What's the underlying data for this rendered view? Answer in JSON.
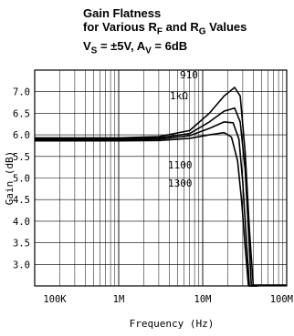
{
  "chart_data": {
    "type": "line",
    "title_lines": [
      "Gain Flatness",
      "for Various R",
      "F",
      " and R",
      "G",
      " Values"
    ],
    "title": {
      "line1": "Gain Flatness",
      "line2_a": "for Various R",
      "line2_sub1": "F",
      "line2_b": " and R",
      "line2_sub2": "G",
      "line2_c": " Values",
      "line3_a": "V",
      "line3_sub1": "S",
      "line3_b": " = ±5V, A",
      "line3_sub2": "V",
      "line3_c": " = 6dB"
    },
    "xlabel": "Frequency (Hz)",
    "ylabel": "Gain (dB)",
    "x_scale": "log",
    "xlim": [
      100000,
      100000000
    ],
    "ylim": [
      2.5,
      7.5
    ],
    "x_ticks": [
      {
        "value": 100000,
        "label": "100K"
      },
      {
        "value": 1000000,
        "label": "1M"
      },
      {
        "value": 10000000,
        "label": "10M"
      },
      {
        "value": 100000000,
        "label": "100M"
      }
    ],
    "y_ticks": [
      {
        "value": 7.0,
        "label": "7.0"
      },
      {
        "value": 6.5,
        "label": "6.5"
      },
      {
        "value": 6.0,
        "label": "6.0"
      },
      {
        "value": 5.5,
        "label": "5.5"
      },
      {
        "value": 5.0,
        "label": "5.0"
      },
      {
        "value": 4.5,
        "label": "4.5"
      },
      {
        "value": 4.0,
        "label": "4.0"
      },
      {
        "value": 3.5,
        "label": "3.5"
      },
      {
        "value": 3.0,
        "label": "3.0"
      }
    ],
    "grid": true,
    "series": [
      {
        "name": "910",
        "label": "910",
        "x": [
          100000,
          1000000,
          3000000,
          7000000,
          12000000,
          18000000,
          24000000,
          28000000,
          32000000,
          36000000,
          40000000,
          45000000
        ],
        "y": [
          5.93,
          5.93,
          5.96,
          6.1,
          6.5,
          6.9,
          7.1,
          6.9,
          5.6,
          3.8,
          2.5,
          2.5
        ]
      },
      {
        "name": "1kΩ",
        "label": "1kΩ",
        "x": [
          100000,
          1000000,
          3000000,
          7000000,
          12000000,
          18000000,
          24000000,
          28000000,
          32000000,
          35000000,
          38000000,
          45000000
        ],
        "y": [
          5.91,
          5.91,
          5.93,
          6.03,
          6.3,
          6.55,
          6.62,
          6.3,
          5.2,
          3.8,
          2.5,
          2.5
        ]
      },
      {
        "name": "1100",
        "label": "1100",
        "x": [
          100000,
          1000000,
          3000000,
          7000000,
          12000000,
          18000000,
          23000000,
          27000000,
          30000000,
          33000000,
          36000000,
          45000000
        ],
        "y": [
          5.88,
          5.88,
          5.9,
          5.98,
          6.15,
          6.3,
          6.28,
          5.9,
          4.9,
          3.6,
          2.5,
          2.5
        ]
      },
      {
        "name": "1300",
        "label": "1300",
        "x": [
          100000,
          1000000,
          3000000,
          7000000,
          12000000,
          18000000,
          22000000,
          26000000,
          29000000,
          32000000,
          35000000,
          45000000
        ],
        "y": [
          5.86,
          5.86,
          5.87,
          5.92,
          6.0,
          6.05,
          5.95,
          5.4,
          4.5,
          3.4,
          2.5,
          2.5
        ]
      }
    ]
  }
}
